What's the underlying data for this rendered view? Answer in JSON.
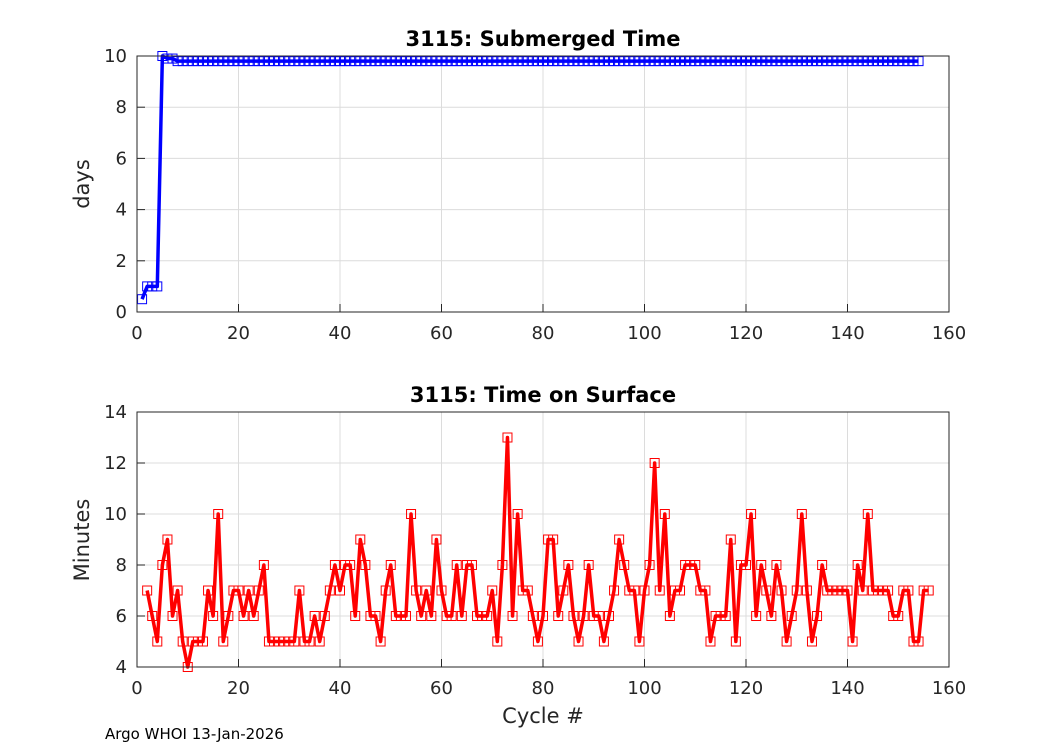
{
  "footer": "Argo WHOI 13-Jan-2026",
  "chart_data": [
    {
      "type": "line",
      "title": "3115: Submerged Time",
      "xlabel": "",
      "ylabel": "days",
      "xlim": [
        0,
        160
      ],
      "ylim": [
        0,
        10
      ],
      "xticks": [
        0,
        20,
        40,
        60,
        80,
        100,
        120,
        140,
        160
      ],
      "yticks": [
        0,
        2,
        4,
        6,
        8,
        10
      ],
      "grid": true,
      "marker": "square",
      "color": "#0000ff",
      "x_start": 1,
      "series": [
        {
          "values": [
            0.5,
            1,
            1,
            1,
            10,
            9.9,
            9.9,
            9.8,
            9.8,
            9.8,
            9.8,
            9.8,
            9.8,
            9.8,
            9.8,
            9.8,
            9.8,
            9.8,
            9.8,
            9.8,
            9.8,
            9.8,
            9.8,
            9.8,
            9.8,
            9.8,
            9.8,
            9.8,
            9.8,
            9.8,
            9.8,
            9.8,
            9.8,
            9.8,
            9.8,
            9.8,
            9.8,
            9.8,
            9.8,
            9.8,
            9.8,
            9.8,
            9.8,
            9.8,
            9.8,
            9.8,
            9.8,
            9.8,
            9.8,
            9.8,
            9.8,
            9.8,
            9.8,
            9.8,
            9.8,
            9.8,
            9.8,
            9.8,
            9.8,
            9.8,
            9.8,
            9.8,
            9.8,
            9.8,
            9.8,
            9.8,
            9.8,
            9.8,
            9.8,
            9.8,
            9.8,
            9.8,
            9.8,
            9.8,
            9.8,
            9.8,
            9.8,
            9.8,
            9.8,
            9.8,
            9.8,
            9.8,
            9.8,
            9.8,
            9.8,
            9.8,
            9.8,
            9.8,
            9.8,
            9.8,
            9.8,
            9.8,
            9.8,
            9.8,
            9.8,
            9.8,
            9.8,
            9.8,
            9.8,
            9.8,
            9.8,
            9.8,
            9.8,
            9.8,
            9.8,
            9.8,
            9.8,
            9.8,
            9.8,
            9.8,
            9.8,
            9.8,
            9.8,
            9.8,
            9.8,
            9.8,
            9.8,
            9.8,
            9.8,
            9.8,
            9.8,
            9.8,
            9.8,
            9.8,
            9.8,
            9.8,
            9.8,
            9.8,
            9.8,
            9.8,
            9.8,
            9.8,
            9.8,
            9.8,
            9.8,
            9.8,
            9.8,
            9.8,
            9.8,
            9.8,
            9.8,
            9.8,
            9.8,
            9.8,
            9.8,
            9.8,
            9.8,
            9.8,
            9.8,
            9.8,
            9.8,
            9.8,
            9.8,
            9.8
          ]
        }
      ]
    },
    {
      "type": "line",
      "title": "3115: Time on Surface",
      "xlabel": "Cycle #",
      "ylabel": "Minutes",
      "xlim": [
        0,
        160
      ],
      "ylim": [
        4,
        14
      ],
      "xticks": [
        0,
        20,
        40,
        60,
        80,
        100,
        120,
        140,
        160
      ],
      "yticks": [
        4,
        6,
        8,
        10,
        12,
        14
      ],
      "grid": true,
      "marker": "square",
      "color": "#ff0000",
      "x_start": 2,
      "series": [
        {
          "values": [
            7,
            6,
            5,
            8,
            9,
            6,
            7,
            5,
            4,
            5,
            5,
            5,
            7,
            6,
            10,
            5,
            6,
            7,
            7,
            6,
            7,
            6,
            7,
            8,
            5,
            5,
            5,
            5,
            5,
            5,
            7,
            5,
            5,
            6,
            5,
            6,
            7,
            8,
            7,
            8,
            8,
            6,
            9,
            8,
            6,
            6,
            5,
            7,
            8,
            6,
            6,
            6,
            10,
            7,
            6,
            7,
            6,
            9,
            7,
            6,
            6,
            8,
            6,
            8,
            8,
            6,
            6,
            6,
            7,
            5,
            8,
            13,
            6,
            10,
            7,
            7,
            6,
            5,
            6,
            9,
            9,
            6,
            7,
            8,
            6,
            5,
            6,
            8,
            6,
            6,
            5,
            6,
            7,
            9,
            8,
            7,
            7,
            5,
            7,
            8,
            12,
            7,
            10,
            6,
            7,
            7,
            8,
            8,
            8,
            7,
            7,
            5,
            6,
            6,
            6,
            9,
            5,
            8,
            8,
            10,
            6,
            8,
            7,
            6,
            8,
            7,
            5,
            6,
            7,
            10,
            7,
            5,
            6,
            8,
            7,
            7,
            7,
            7,
            7,
            5,
            8,
            7,
            10,
            7,
            7,
            7,
            7,
            6,
            6,
            7,
            7,
            5,
            5,
            7,
            7
          ]
        }
      ]
    }
  ]
}
